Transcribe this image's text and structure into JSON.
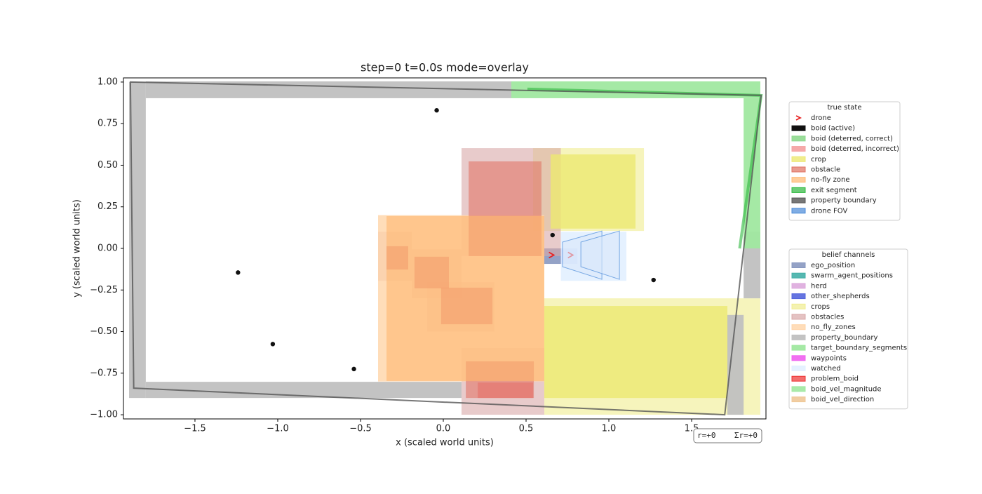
{
  "chart_data": {
    "type": "overlay",
    "title": "step=0 t=0.0s mode=overlay",
    "xlabel": "x (scaled world units)",
    "ylabel": "y (scaled world units)",
    "xlim": [
      -1.932,
      1.949
    ],
    "ylim": [
      -1.025,
      1.025
    ],
    "xticks": [
      {
        "value": -1.5,
        "label": "−1.5"
      },
      {
        "value": -1,
        "label": "−1.0"
      },
      {
        "value": -0.5,
        "label": "−0.5"
      },
      {
        "value": 0,
        "label": "0.0"
      },
      {
        "value": 0.5,
        "label": "0.5"
      },
      {
        "value": 1,
        "label": "1.0"
      },
      {
        "value": 1.5,
        "label": "1.5"
      }
    ],
    "yticks": [
      {
        "value": 1,
        "label": "1.00"
      },
      {
        "value": 0.75,
        "label": "0.75"
      },
      {
        "value": 0.5,
        "label": "0.50"
      },
      {
        "value": 0.25,
        "label": "0.25"
      },
      {
        "value": 0,
        "label": "0.00"
      },
      {
        "value": -0.25,
        "label": "−0.25"
      },
      {
        "value": -0.5,
        "label": "−0.50"
      },
      {
        "value": -0.75,
        "label": "−0.75"
      },
      {
        "value": -1,
        "label": "−1.00"
      }
    ],
    "reward_text": "r=+0    Σr=+0",
    "legends": [
      {
        "title": "true state",
        "items": [
          {
            "name": "drone",
            "color": "#e82020",
            "marker": "chevron",
            "points": [
              [
                0.655,
                -0.04
              ],
              [
                0.77,
                -0.04
              ]
            ]
          },
          {
            "name": "boid (active)",
            "color": "#111111",
            "marker": "dot",
            "points": [
              [
                -0.04,
                0.83
              ],
              [
                -1.24,
                -0.145
              ],
              [
                -1.03,
                -0.575
              ],
              [
                -0.54,
                -0.725
              ],
              [
                1.27,
                -0.19
              ],
              [
                0.66,
                0.08
              ]
            ]
          },
          {
            "name": "boid (deterred, correct)",
            "color": "#8fd98f"
          },
          {
            "name": "boid (deterred, incorrect)",
            "color": "#f4a0a0"
          },
          {
            "name": "crop",
            "color": "#ece870",
            "alpha": 0.8,
            "rects": [
              [
                0.648,
                0.119,
                1.161,
                0.565
              ],
              [
                0.61,
                -0.899,
                1.716,
                -0.346
              ]
            ]
          },
          {
            "name": "obstacle",
            "color": "#e07060",
            "alpha": 0.55,
            "rects": [
              [
                0.153,
                -0.046,
                0.593,
                0.523
              ],
              [
                -0.343,
                -0.127,
                -0.212,
                0.013
              ],
              [
                -0.174,
                -0.24,
                0.034,
                -0.05
              ],
              [
                -0.013,
                -0.456,
                0.297,
                -0.236
              ],
              [
                0.136,
                -0.899,
                0.547,
                -0.679
              ]
            ]
          },
          {
            "name": "no-fly zone",
            "color": "#ffb870",
            "alpha": 0.6,
            "rects": [
              [
                -0.343,
                -0.797,
                0.61,
                0.194
              ]
            ]
          },
          {
            "name": "exit segment",
            "color": "#2db83d",
            "alpha": 0.6,
            "width": 4,
            "line": [
              [
                0.508,
                0.958
              ],
              [
                1.92,
                0.92
              ],
              [
                1.79,
                0
              ]
            ],
            "closed": false
          },
          {
            "name": "property boundary",
            "color": "#555555",
            "alpha": 0.8,
            "width": 2,
            "line": [
              [
                -1.89,
                1.0
              ],
              [
                1.92,
                0.92
              ],
              [
                1.7,
                -1.0
              ],
              [
                -1.87,
                -0.84
              ]
            ],
            "closed": true
          },
          {
            "name": "drone FOV",
            "color": "#4a8ad8",
            "alpha": 0.7,
            "polygons": [
              [
                [
                  0.72,
                  0.038
                ],
                [
                  0.958,
                  0.105
                ],
                [
                  0.958,
                  -0.186
                ],
                [
                  0.72,
                  -0.11
                ]
              ],
              [
                [
                  0.831,
                  0.038
                ],
                [
                  1.064,
                  0.105
                ],
                [
                  1.064,
                  -0.186
                ],
                [
                  0.831,
                  -0.11
                ]
              ]
            ]
          }
        ]
      },
      {
        "title": "belief channels",
        "items": [
          {
            "name": "ego_position",
            "color": "#8898c0",
            "alpha": 0.9,
            "rects": [
              [
                0.61,
                -0.093,
                0.71,
                0
              ]
            ]
          },
          {
            "name": "swarm_agent_positions",
            "color": "#44b0a8"
          },
          {
            "name": "herd",
            "color": "#ddaadd"
          },
          {
            "name": "other_shepherds",
            "color": "#5566dd",
            "alpha": 0.9,
            "rects": [
              [
                0.71,
                -0.093,
                0.81,
                0
              ]
            ]
          },
          {
            "name": "crops",
            "color": "#f0ec90",
            "alpha": 0.6,
            "rects": [
              [
                0.542,
                0.105,
                1.212,
                0.603
              ],
              [
                0.61,
                -1.0,
                1.915,
                -0.3
              ]
            ]
          },
          {
            "name": "obstacles",
            "color": "#d8a8a8",
            "alpha": 0.6,
            "rects": [
              [
                0.11,
                -0.046,
                0.71,
                0.603
              ],
              [
                -0.394,
                -0.195,
                -0.19,
                0.1
              ],
              [
                -0.19,
                -0.3,
                0.11,
                -0.005
              ],
              [
                -0.097,
                -0.5,
                0.308,
                -0.203
              ],
              [
                0.11,
                -1.0,
                0.61,
                -0.599
              ]
            ]
          },
          {
            "name": "no_fly_zones",
            "color": "#ffd5a8",
            "alpha": 0.8,
            "rects": [
              [
                -0.394,
                -0.8,
                0.61,
                0.2
              ]
            ]
          },
          {
            "name": "property_boundary",
            "color": "#c0c0c0",
            "alpha": 0.95,
            "rects": [
              [
                -1.898,
                -0.899,
                -1.797,
                1.0
              ],
              [
                -1.797,
                0.903,
                0.411,
                1.004
              ],
              [
                -1.797,
                -0.899,
                0.11,
                -0.802
              ],
              [
                1.814,
                -0.3,
                1.915,
                0.1
              ],
              [
                1.716,
                -1.0,
                1.814,
                -0.4
              ]
            ]
          },
          {
            "name": "target_boundary_segments",
            "color": "#a0e8a0",
            "alpha": 0.95,
            "rects": [
              [
                0.411,
                0.903,
                1.915,
                1.004
              ],
              [
                1.814,
                0,
                1.915,
                0.903
              ]
            ]
          },
          {
            "name": "waypoints",
            "color": "#f060f0"
          },
          {
            "name": "watched",
            "color": "#e2efff",
            "alpha": 0.9,
            "rects": [
              [
                0.71,
                -0.195,
                1.106,
                0.1
              ]
            ]
          },
          {
            "name": "problem_boid",
            "color": "#ee3030",
            "alpha": 0.35,
            "rects": [
              [
                0.208,
                -0.899,
                0.542,
                -0.806
              ]
            ]
          },
          {
            "name": "boid_vel_magnitude",
            "color": "#a0e8a0"
          },
          {
            "name": "boid_vel_direction",
            "color": "#f0c898"
          }
        ]
      }
    ]
  }
}
